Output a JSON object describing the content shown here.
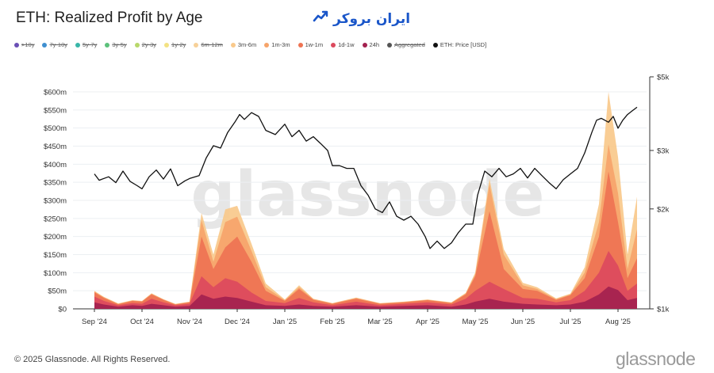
{
  "header": {
    "title": "ETH: Realized Profit by Age",
    "logo_text": "ایران بروکر"
  },
  "legend": [
    {
      "label": ">10y",
      "color": "#6a4fb5",
      "active": false
    },
    {
      "label": "7y-10y",
      "color": "#3f8fd0",
      "active": false
    },
    {
      "label": "5y-7y",
      "color": "#38b6a8",
      "active": false
    },
    {
      "label": "3y-5y",
      "color": "#5cc17b",
      "active": false
    },
    {
      "label": "2y-3y",
      "color": "#b8d86b",
      "active": false
    },
    {
      "label": "1y-2y",
      "color": "#f3e283",
      "active": false
    },
    {
      "label": "6m-12m",
      "color": "#f7d199",
      "active": false
    },
    {
      "label": "3m-6m",
      "color": "#f9c98b",
      "active": true
    },
    {
      "label": "1m-3m",
      "color": "#f6a46a",
      "active": true
    },
    {
      "label": "1w-1m",
      "color": "#ee7352",
      "active": true
    },
    {
      "label": "1d-1w",
      "color": "#dc4a5e",
      "active": true
    },
    {
      "label": "24h",
      "color": "#a3214f",
      "active": true
    },
    {
      "label": "Aggregated",
      "color": "#555555",
      "active": false
    },
    {
      "label": "ETH: Price [USD]",
      "color": "#111111",
      "active": true
    }
  ],
  "watermark": "glassnode",
  "footer": {
    "copyright": "© 2025 Glassnode. All Rights Reserved.",
    "brand": "glassnode"
  },
  "chart_data": {
    "type": "area",
    "title": "ETH: Realized Profit by Age",
    "x": [
      "Sep '24",
      "Oct '24",
      "Nov '24",
      "Dec '24",
      "Jan '25",
      "Feb '25",
      "Mar '25",
      "Apr '25",
      "May '25",
      "Jun '25",
      "Jul '25",
      "Aug '25"
    ],
    "y_left": {
      "ticks": [
        "$0",
        "$50m",
        "$100m",
        "$150m",
        "$200m",
        "$250m",
        "$300m",
        "$350m",
        "$400m",
        "$450m",
        "$500m",
        "$550m",
        "$600m"
      ],
      "range": [
        0,
        600
      ],
      "unit": "USD millions"
    },
    "y_right": {
      "ticks": [
        "$1k",
        "$2k",
        "$3k",
        "$5k"
      ],
      "scale": "log",
      "range": [
        1000,
        5000
      ],
      "unit": "USD"
    },
    "grid": true,
    "legend_position": "top-left",
    "stack_order": [
      "24h",
      "1d-1w",
      "1w-1m",
      "1m-3m",
      "3m-6m"
    ],
    "series": [
      {
        "name": "24h",
        "color": "#a3214f",
        "values": [
          [
            0,
            18
          ],
          [
            0.2,
            12
          ],
          [
            0.5,
            6
          ],
          [
            0.8,
            10
          ],
          [
            1,
            8
          ],
          [
            1.2,
            14
          ],
          [
            1.45,
            10
          ],
          [
            1.7,
            6
          ],
          [
            2,
            8
          ],
          [
            2.25,
            40
          ],
          [
            2.5,
            28
          ],
          [
            2.75,
            34
          ],
          [
            3,
            30
          ],
          [
            3.3,
            20
          ],
          [
            3.6,
            10
          ],
          [
            4,
            8
          ],
          [
            4.3,
            12
          ],
          [
            4.6,
            8
          ],
          [
            5,
            6
          ],
          [
            5.5,
            10
          ],
          [
            6,
            6
          ],
          [
            6.5,
            8
          ],
          [
            7,
            10
          ],
          [
            7.5,
            6
          ],
          [
            7.8,
            12
          ],
          [
            8,
            20
          ],
          [
            8.3,
            28
          ],
          [
            8.6,
            20
          ],
          [
            9,
            14
          ],
          [
            9.3,
            12
          ],
          [
            9.7,
            10
          ],
          [
            10,
            12
          ],
          [
            10.3,
            20
          ],
          [
            10.6,
            40
          ],
          [
            10.8,
            62
          ],
          [
            11,
            52
          ],
          [
            11.2,
            24
          ],
          [
            11.4,
            30
          ]
        ]
      },
      {
        "name": "1d-1w",
        "color": "#dc4a5e",
        "values": [
          [
            0,
            34
          ],
          [
            0.2,
            22
          ],
          [
            0.5,
            10
          ],
          [
            0.8,
            16
          ],
          [
            1,
            14
          ],
          [
            1.2,
            28
          ],
          [
            1.45,
            18
          ],
          [
            1.7,
            10
          ],
          [
            2,
            14
          ],
          [
            2.25,
            90
          ],
          [
            2.5,
            60
          ],
          [
            2.75,
            85
          ],
          [
            3,
            75
          ],
          [
            3.3,
            45
          ],
          [
            3.6,
            22
          ],
          [
            4,
            16
          ],
          [
            4.3,
            30
          ],
          [
            4.6,
            18
          ],
          [
            5,
            10
          ],
          [
            5.5,
            20
          ],
          [
            6,
            10
          ],
          [
            6.5,
            14
          ],
          [
            7,
            18
          ],
          [
            7.5,
            12
          ],
          [
            7.8,
            28
          ],
          [
            8,
            50
          ],
          [
            8.3,
            75
          ],
          [
            8.6,
            55
          ],
          [
            9,
            30
          ],
          [
            9.3,
            28
          ],
          [
            9.7,
            18
          ],
          [
            10,
            24
          ],
          [
            10.3,
            50
          ],
          [
            10.6,
            100
          ],
          [
            10.8,
            160
          ],
          [
            11,
            120
          ],
          [
            11.2,
            50
          ],
          [
            11.4,
            70
          ]
        ]
      },
      {
        "name": "1w-1m",
        "color": "#ee7352",
        "values": [
          [
            0,
            46
          ],
          [
            0.2,
            30
          ],
          [
            0.5,
            13
          ],
          [
            0.8,
            22
          ],
          [
            1,
            20
          ],
          [
            1.2,
            40
          ],
          [
            1.45,
            25
          ],
          [
            1.7,
            12
          ],
          [
            2,
            18
          ],
          [
            2.25,
            200
          ],
          [
            2.5,
            110
          ],
          [
            2.75,
            170
          ],
          [
            3,
            200
          ],
          [
            3.3,
            130
          ],
          [
            3.6,
            50
          ],
          [
            4,
            22
          ],
          [
            4.3,
            55
          ],
          [
            4.6,
            25
          ],
          [
            5,
            14
          ],
          [
            5.5,
            28
          ],
          [
            6,
            14
          ],
          [
            6.5,
            18
          ],
          [
            7,
            24
          ],
          [
            7.5,
            16
          ],
          [
            7.8,
            40
          ],
          [
            8,
            90
          ],
          [
            8.3,
            270
          ],
          [
            8.6,
            110
          ],
          [
            9,
            55
          ],
          [
            9.3,
            50
          ],
          [
            9.7,
            25
          ],
          [
            10,
            38
          ],
          [
            10.3,
            85
          ],
          [
            10.6,
            200
          ],
          [
            10.8,
            380
          ],
          [
            11,
            240
          ],
          [
            11.2,
            85
          ],
          [
            11.4,
            140
          ]
        ]
      },
      {
        "name": "1m-3m",
        "color": "#f6a46a",
        "values": [
          [
            0,
            48
          ],
          [
            0.2,
            32
          ],
          [
            0.5,
            14
          ],
          [
            0.8,
            23
          ],
          [
            1,
            21
          ],
          [
            1.2,
            42
          ],
          [
            1.45,
            26
          ],
          [
            1.7,
            13
          ],
          [
            2,
            19
          ],
          [
            2.25,
            245
          ],
          [
            2.5,
            130
          ],
          [
            2.75,
            240
          ],
          [
            3,
            255
          ],
          [
            3.3,
            160
          ],
          [
            3.6,
            60
          ],
          [
            4,
            24
          ],
          [
            4.3,
            60
          ],
          [
            4.6,
            27
          ],
          [
            5,
            15
          ],
          [
            5.5,
            30
          ],
          [
            6,
            15
          ],
          [
            6.5,
            19
          ],
          [
            7,
            25
          ],
          [
            7.5,
            17
          ],
          [
            7.8,
            42
          ],
          [
            8,
            95
          ],
          [
            8.3,
            345
          ],
          [
            8.6,
            150
          ],
          [
            9,
            65
          ],
          [
            9.3,
            55
          ],
          [
            9.7,
            27
          ],
          [
            10,
            40
          ],
          [
            10.3,
            100
          ],
          [
            10.6,
            240
          ],
          [
            10.8,
            455
          ],
          [
            11,
            320
          ],
          [
            11.2,
            110
          ],
          [
            11.4,
            220
          ]
        ]
      },
      {
        "name": "3m-6m",
        "color": "#f9c98b",
        "values": [
          [
            0,
            50
          ],
          [
            0.2,
            33
          ],
          [
            0.5,
            15
          ],
          [
            0.8,
            24
          ],
          [
            1,
            22
          ],
          [
            1.2,
            43
          ],
          [
            1.45,
            27
          ],
          [
            1.7,
            14
          ],
          [
            2,
            20
          ],
          [
            2.25,
            265
          ],
          [
            2.5,
            150
          ],
          [
            2.75,
            275
          ],
          [
            3,
            285
          ],
          [
            3.3,
            180
          ],
          [
            3.6,
            70
          ],
          [
            4,
            26
          ],
          [
            4.3,
            65
          ],
          [
            4.6,
            28
          ],
          [
            5,
            16
          ],
          [
            5.5,
            31
          ],
          [
            6,
            16
          ],
          [
            6.5,
            20
          ],
          [
            7,
            26
          ],
          [
            7.5,
            18
          ],
          [
            7.8,
            44
          ],
          [
            8,
            100
          ],
          [
            8.3,
            360
          ],
          [
            8.6,
            165
          ],
          [
            9,
            72
          ],
          [
            9.3,
            60
          ],
          [
            9.7,
            29
          ],
          [
            10,
            42
          ],
          [
            10.3,
            115
          ],
          [
            10.6,
            290
          ],
          [
            10.8,
            600
          ],
          [
            11,
            420
          ],
          [
            11.2,
            150
          ],
          [
            11.4,
            310
          ]
        ]
      },
      {
        "name": "ETH: Price [USD]",
        "color": "#111111",
        "axis": "right",
        "values": [
          [
            0,
            2550
          ],
          [
            0.1,
            2440
          ],
          [
            0.3,
            2500
          ],
          [
            0.45,
            2400
          ],
          [
            0.6,
            2600
          ],
          [
            0.75,
            2420
          ],
          [
            0.9,
            2350
          ],
          [
            1.0,
            2300
          ],
          [
            1.15,
            2500
          ],
          [
            1.3,
            2620
          ],
          [
            1.45,
            2460
          ],
          [
            1.6,
            2640
          ],
          [
            1.75,
            2350
          ],
          [
            1.9,
            2430
          ],
          [
            2.0,
            2470
          ],
          [
            2.2,
            2520
          ],
          [
            2.35,
            2850
          ],
          [
            2.5,
            3100
          ],
          [
            2.65,
            3050
          ],
          [
            2.8,
            3400
          ],
          [
            2.95,
            3650
          ],
          [
            3.05,
            3850
          ],
          [
            3.15,
            3720
          ],
          [
            3.3,
            3900
          ],
          [
            3.45,
            3800
          ],
          [
            3.6,
            3450
          ],
          [
            3.8,
            3350
          ],
          [
            4.0,
            3600
          ],
          [
            4.15,
            3300
          ],
          [
            4.3,
            3450
          ],
          [
            4.45,
            3200
          ],
          [
            4.6,
            3300
          ],
          [
            4.75,
            3150
          ],
          [
            4.9,
            3000
          ],
          [
            5.0,
            2700
          ],
          [
            5.15,
            2700
          ],
          [
            5.3,
            2650
          ],
          [
            5.45,
            2650
          ],
          [
            5.6,
            2350
          ],
          [
            5.75,
            2200
          ],
          [
            5.9,
            2000
          ],
          [
            6.05,
            1950
          ],
          [
            6.2,
            2100
          ],
          [
            6.35,
            1900
          ],
          [
            6.5,
            1850
          ],
          [
            6.65,
            1900
          ],
          [
            6.8,
            1800
          ],
          [
            6.95,
            1650
          ],
          [
            7.05,
            1520
          ],
          [
            7.2,
            1600
          ],
          [
            7.35,
            1520
          ],
          [
            7.5,
            1580
          ],
          [
            7.65,
            1700
          ],
          [
            7.8,
            1800
          ],
          [
            7.95,
            1800
          ],
          [
            8.05,
            2200
          ],
          [
            8.2,
            2600
          ],
          [
            8.35,
            2500
          ],
          [
            8.5,
            2650
          ],
          [
            8.65,
            2500
          ],
          [
            8.8,
            2550
          ],
          [
            8.95,
            2650
          ],
          [
            9.1,
            2480
          ],
          [
            9.25,
            2650
          ],
          [
            9.4,
            2520
          ],
          [
            9.55,
            2400
          ],
          [
            9.7,
            2300
          ],
          [
            9.85,
            2450
          ],
          [
            10.0,
            2550
          ],
          [
            10.15,
            2650
          ],
          [
            10.3,
            2950
          ],
          [
            10.45,
            3400
          ],
          [
            10.55,
            3700
          ],
          [
            10.65,
            3750
          ],
          [
            10.8,
            3650
          ],
          [
            10.9,
            3800
          ],
          [
            11.0,
            3500
          ],
          [
            11.1,
            3700
          ],
          [
            11.2,
            3850
          ],
          [
            11.3,
            3950
          ],
          [
            11.4,
            4050
          ]
        ]
      }
    ]
  }
}
